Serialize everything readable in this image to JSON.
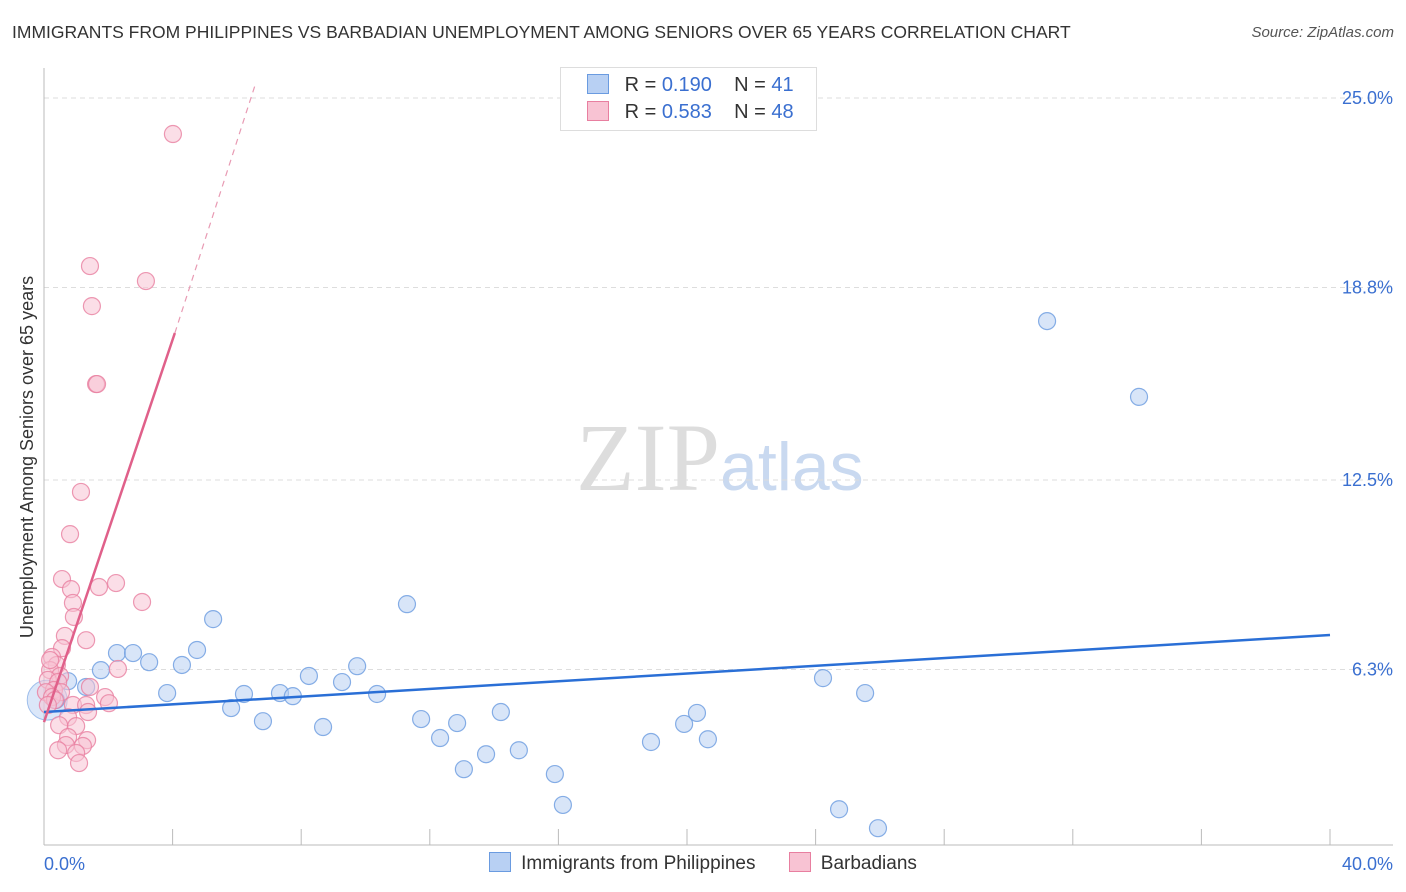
{
  "title": "IMMIGRANTS FROM PHILIPPINES VS BARBADIAN UNEMPLOYMENT AMONG SENIORS OVER 65 YEARS CORRELATION CHART",
  "source": "Source: ZipAtlas.com",
  "watermark": "ZIPatlas",
  "legend": [
    {
      "r_label": "R =",
      "r": "0.190",
      "n_label": "N =",
      "n": "41"
    },
    {
      "r_label": "R =",
      "r": "0.583",
      "n_label": "N =",
      "n": "48"
    }
  ],
  "chart_data": {
    "type": "scatter",
    "title": "IMMIGRANTS FROM PHILIPPINES VS BARBADIAN UNEMPLOYMENT AMONG SENIORS OVER 65 YEARS CORRELATION CHART",
    "xlabel": "",
    "ylabel": "Unemployment Among Seniors over 65 years",
    "xlim": [
      0,
      40
    ],
    "ylim": [
      0.56,
      25.98
    ],
    "x_ticks": [
      "0.0%",
      "40.0%"
    ],
    "y_ticks": [
      {
        "v": 25.0,
        "label": "25.0%"
      },
      {
        "v": 18.8,
        "label": "18.8%"
      },
      {
        "v": 12.5,
        "label": "12.5%"
      },
      {
        "v": 6.3,
        "label": "6.3%"
      }
    ],
    "legend_placement": "bottom-center",
    "series": [
      {
        "name": "Immigrants from Philippines",
        "color": "#6a9be0",
        "fill": "#b8d0f3",
        "trend": [
          [
            0,
            4.91
          ],
          [
            40,
            7.43
          ]
        ],
        "points": [
          [
            0.75,
            5.92
          ],
          [
            1.31,
            5.73
          ],
          [
            0.37,
            5.3
          ],
          [
            1.77,
            6.28
          ],
          [
            2.27,
            6.84
          ],
          [
            2.77,
            6.84
          ],
          [
            3.27,
            6.54
          ],
          [
            3.83,
            5.53
          ],
          [
            4.29,
            6.45
          ],
          [
            4.76,
            6.94
          ],
          [
            5.26,
            7.95
          ],
          [
            5.82,
            5.04
          ],
          [
            6.22,
            5.5
          ],
          [
            6.81,
            4.61
          ],
          [
            7.34,
            5.53
          ],
          [
            7.74,
            5.43
          ],
          [
            8.24,
            6.09
          ],
          [
            8.68,
            4.42
          ],
          [
            9.27,
            5.89
          ],
          [
            9.74,
            6.41
          ],
          [
            10.36,
            5.5
          ],
          [
            11.29,
            8.44
          ],
          [
            11.73,
            4.68
          ],
          [
            12.32,
            4.06
          ],
          [
            12.85,
            4.55
          ],
          [
            13.06,
            3.04
          ],
          [
            13.75,
            3.53
          ],
          [
            14.21,
            4.91
          ],
          [
            14.77,
            3.66
          ],
          [
            15.89,
            2.88
          ],
          [
            16.14,
            1.87
          ],
          [
            18.88,
            3.93
          ],
          [
            19.91,
            4.52
          ],
          [
            20.31,
            4.88
          ],
          [
            20.65,
            4.02
          ],
          [
            24.23,
            6.02
          ],
          [
            24.73,
            1.73
          ],
          [
            25.54,
            5.53
          ],
          [
            25.94,
            1.11
          ],
          [
            31.2,
            17.7
          ],
          [
            34.06,
            15.22
          ]
        ]
      },
      {
        "name": "Barbadians",
        "color": "#e87fa0",
        "fill": "#f8c3d3",
        "trend": [
          [
            0,
            4.58
          ],
          [
            4.07,
            17.31
          ]
        ],
        "trend_dashed": [
          [
            4.07,
            17.31
          ],
          [
            6.56,
            25.4
          ]
        ],
        "points": [
          [
            4.01,
            23.82
          ],
          [
            1.43,
            19.5
          ],
          [
            3.17,
            19.01
          ],
          [
            1.49,
            18.19
          ],
          [
            1.62,
            15.64
          ],
          [
            1.65,
            15.64
          ],
          [
            1.15,
            12.11
          ],
          [
            0.81,
            10.73
          ],
          [
            0.56,
            9.26
          ],
          [
            2.24,
            9.13
          ],
          [
            0.84,
            8.93
          ],
          [
            1.71,
            9.0
          ],
          [
            0.9,
            8.48
          ],
          [
            3.05,
            8.51
          ],
          [
            0.93,
            8.02
          ],
          [
            0.65,
            7.4
          ],
          [
            1.31,
            7.26
          ],
          [
            0.56,
            7.0
          ],
          [
            0.25,
            6.71
          ],
          [
            0.4,
            6.45
          ],
          [
            2.3,
            6.32
          ],
          [
            0.19,
            6.28
          ],
          [
            0.5,
            6.09
          ],
          [
            0.12,
            5.96
          ],
          [
            0.44,
            5.89
          ],
          [
            1.43,
            5.73
          ],
          [
            0.31,
            5.63
          ],
          [
            0.06,
            5.56
          ],
          [
            0.53,
            5.56
          ],
          [
            0.25,
            5.4
          ],
          [
            1.9,
            5.4
          ],
          [
            2.02,
            5.2
          ],
          [
            0.9,
            5.14
          ],
          [
            1.31,
            5.14
          ],
          [
            1.37,
            4.91
          ],
          [
            0.75,
            4.74
          ],
          [
            1.0,
            4.45
          ],
          [
            0.47,
            4.48
          ],
          [
            0.75,
            4.09
          ],
          [
            0.68,
            3.83
          ],
          [
            1.34,
            3.99
          ],
          [
            1.21,
            3.8
          ],
          [
            0.44,
            3.66
          ],
          [
            1.0,
            3.57
          ],
          [
            1.09,
            3.24
          ],
          [
            0.19,
            6.61
          ],
          [
            0.34,
            5.3
          ],
          [
            0.12,
            5.14
          ]
        ]
      }
    ]
  }
}
